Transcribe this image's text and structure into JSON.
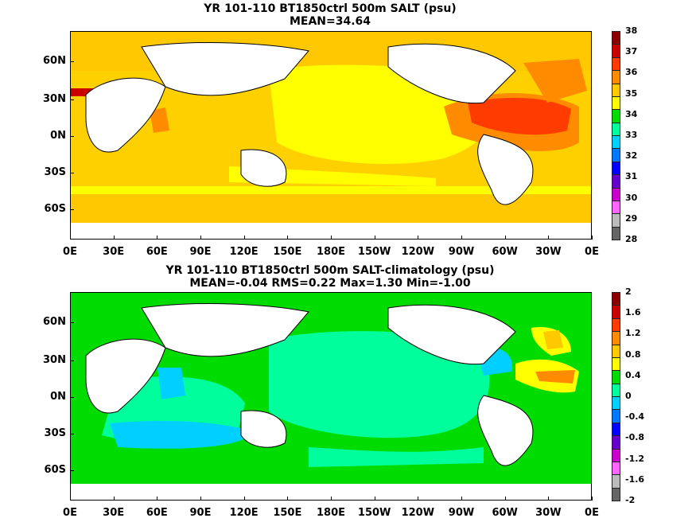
{
  "panel1": {
    "title_line1": "YR 101-110 BT1850ctrl 500m SALT (psu)",
    "title_line2": "MEAN=34.64",
    "y_labels": [
      "60N",
      "30N",
      "0N",
      "30S",
      "60S"
    ],
    "x_labels": [
      "0E",
      "30E",
      "60E",
      "90E",
      "120E",
      "150E",
      "180E",
      "150W",
      "120W",
      "90W",
      "60W",
      "30W",
      "0E"
    ],
    "colorbar_labels": [
      "38",
      "37",
      "36",
      "35",
      "34",
      "33",
      "32",
      "31",
      "30",
      "29",
      "28"
    ],
    "colorbar_colors": [
      "#8b0000",
      "#c80000",
      "#ff3c00",
      "#ff8c00",
      "#ffc800",
      "#ffff00",
      "#00dc00",
      "#00ff9c",
      "#00d0ff",
      "#0078ff",
      "#0000ff",
      "#6600cc",
      "#cc00cc",
      "#ff66ff",
      "#bbbbbb",
      "#666666"
    ]
  },
  "panel2": {
    "title_line1": "YR 101-110 BT1850ctrl 500m SALT-climatology (psu)",
    "title_line2": "MEAN=-0.04   RMS=0.22   Max=1.30   Min=-1.00",
    "y_labels": [
      "60N",
      "30N",
      "0N",
      "30S",
      "60S"
    ],
    "x_labels": [
      "0E",
      "30E",
      "60E",
      "90E",
      "120E",
      "150E",
      "180E",
      "150W",
      "120W",
      "90W",
      "60W",
      "30W",
      "0E"
    ],
    "colorbar_labels": [
      "2",
      "1.6",
      "1.2",
      "0.8",
      "0.4",
      "0",
      "-0.4",
      "-0.8",
      "-1.2",
      "-1.6",
      "-2"
    ],
    "colorbar_colors": [
      "#8b0000",
      "#c80000",
      "#ff3c00",
      "#ff8c00",
      "#ffc800",
      "#ffff00",
      "#00dc00",
      "#00ff9c",
      "#00d0ff",
      "#0078ff",
      "#0000ff",
      "#6600cc",
      "#cc00cc",
      "#ff66ff",
      "#bbbbbb",
      "#666666"
    ]
  }
}
